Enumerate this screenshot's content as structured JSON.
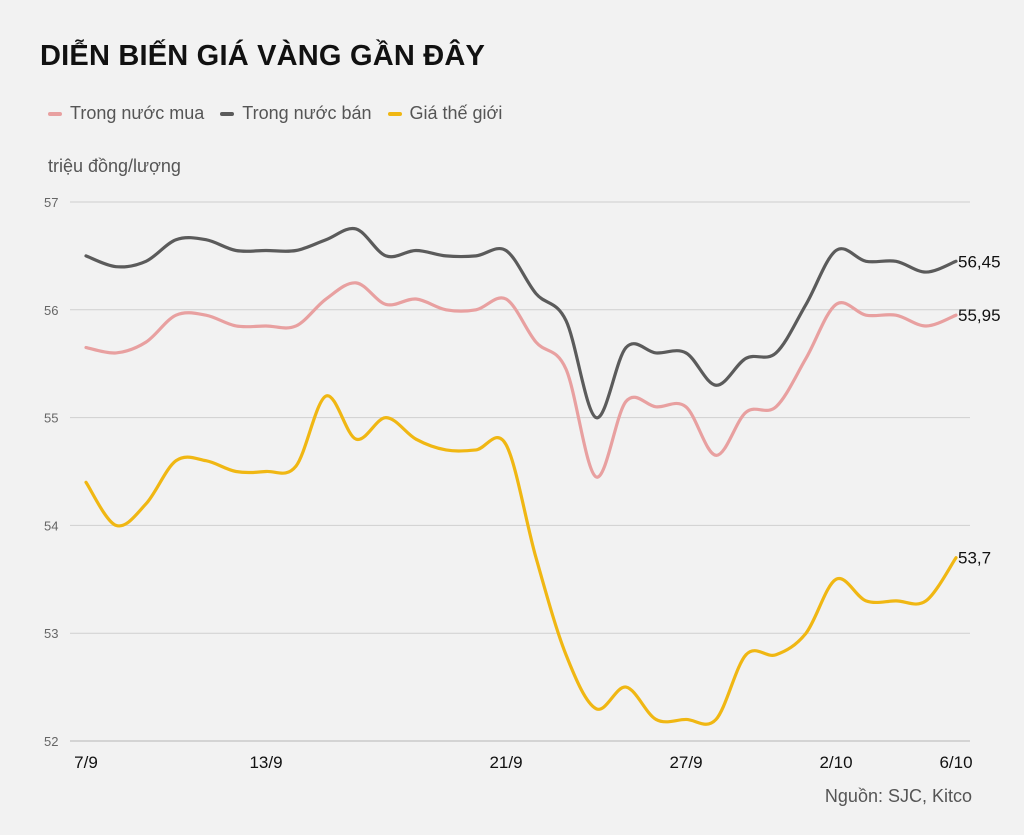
{
  "title": "DIỄN BIẾN GIÁ VÀNG GẦN ĐÂY",
  "unit_label": "triệu đồng/lượng",
  "source": "Nguồn: SJC, Kitco",
  "chart_data": {
    "type": "line",
    "ylabel": "triệu đồng/lượng",
    "ylim": [
      52,
      57
    ],
    "y_ticks": [
      52,
      53,
      54,
      55,
      56,
      57
    ],
    "x_ticks": [
      {
        "label": "7/9",
        "x": 0
      },
      {
        "label": "13/9",
        "x": 6
      },
      {
        "label": "21/9",
        "x": 14
      },
      {
        "label": "27/9",
        "x": 20
      },
      {
        "label": "2/10",
        "x": 25
      },
      {
        "label": "6/10",
        "x": 29
      }
    ],
    "grid": true,
    "legend": "top-left",
    "series": [
      {
        "name": "Trong nước mua",
        "color": "#e8a0a0",
        "end_label": "55,95",
        "x": [
          0,
          1,
          2,
          3,
          4,
          5,
          6,
          7,
          8,
          9,
          10,
          11,
          12,
          13,
          14,
          15,
          16,
          17,
          18,
          19,
          20,
          21,
          22,
          23,
          24,
          25,
          26,
          27,
          28,
          29
        ],
        "values": [
          55.65,
          55.6,
          55.7,
          55.95,
          55.95,
          55.85,
          55.85,
          55.85,
          56.1,
          56.25,
          56.05,
          56.1,
          56.0,
          56.0,
          56.1,
          55.7,
          55.45,
          54.45,
          55.15,
          55.1,
          55.1,
          54.65,
          55.05,
          55.1,
          55.55,
          56.05,
          55.95,
          55.95,
          55.85,
          55.95
        ]
      },
      {
        "name": "Trong nước bán",
        "color": "#5b5b5b",
        "end_label": "56,45",
        "x": [
          0,
          1,
          2,
          3,
          4,
          5,
          6,
          7,
          8,
          9,
          10,
          11,
          12,
          13,
          14,
          15,
          16,
          17,
          18,
          19,
          20,
          21,
          22,
          23,
          24,
          25,
          26,
          27,
          28,
          29
        ],
        "values": [
          56.5,
          56.4,
          56.45,
          56.65,
          56.65,
          56.55,
          56.55,
          56.55,
          56.65,
          56.75,
          56.5,
          56.55,
          56.5,
          56.5,
          56.55,
          56.15,
          55.9,
          55.0,
          55.65,
          55.6,
          55.6,
          55.3,
          55.55,
          55.6,
          56.05,
          56.55,
          56.45,
          56.45,
          56.35,
          56.45
        ]
      },
      {
        "name": "Giá thế giới",
        "color": "#f0b713",
        "end_label": "53,7",
        "x": [
          0,
          1,
          2,
          3,
          4,
          5,
          6,
          7,
          8,
          9,
          10,
          11,
          12,
          13,
          14,
          15,
          16,
          17,
          18,
          19,
          20,
          21,
          22,
          23,
          24,
          25,
          26,
          27,
          28,
          29
        ],
        "values": [
          54.4,
          54.0,
          54.2,
          54.6,
          54.6,
          54.5,
          54.5,
          54.55,
          55.2,
          54.8,
          55.0,
          54.8,
          54.7,
          54.7,
          54.75,
          53.7,
          52.8,
          52.3,
          52.5,
          52.2,
          52.2,
          52.2,
          52.8,
          52.8,
          53.0,
          53.5,
          53.3,
          53.3,
          53.3,
          53.7
        ]
      }
    ]
  }
}
